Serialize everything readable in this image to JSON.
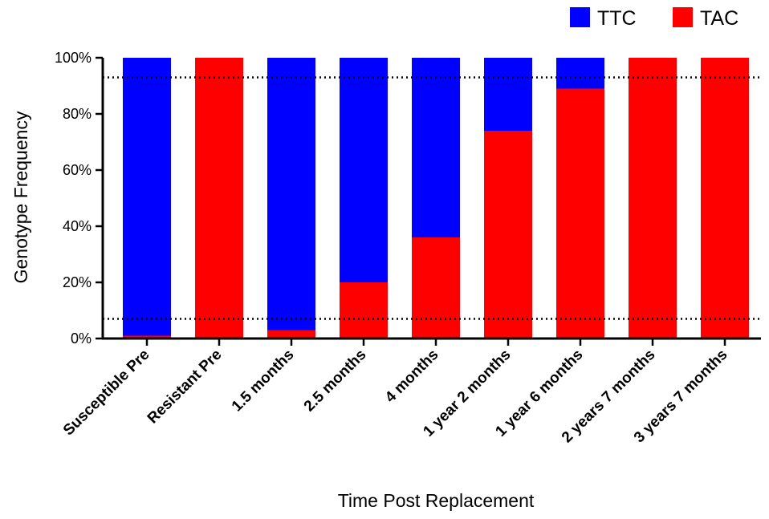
{
  "chart_data": {
    "type": "bar",
    "stacked": true,
    "categories": [
      "Susceptible Pre",
      "Resistant Pre",
      "1.5 months",
      "2.5 months",
      "4 months",
      "1 year 2 months",
      "1 year 6 months",
      "2 years 7 months",
      "3 years 7 months"
    ],
    "series": [
      {
        "name": "TAC",
        "color": "#ff0000",
        "values": [
          1,
          100,
          3,
          20,
          36,
          74,
          89,
          100,
          100
        ]
      },
      {
        "name": "TTC",
        "color": "#0000ff",
        "values": [
          99,
          0,
          97,
          80,
          64,
          26,
          11,
          0,
          0
        ]
      }
    ],
    "xlabel": "Time Post Replacement",
    "ylabel": "Genotype Frequency",
    "ylim": [
      0,
      100
    ],
    "yticks": [
      0,
      20,
      40,
      60,
      80,
      100
    ],
    "ytick_labels": [
      "0%",
      "20%",
      "40%",
      "60%",
      "80%",
      "100%"
    ],
    "reference_lines": [
      93,
      7
    ],
    "legend": {
      "position": "top-right",
      "entries": [
        "TTC",
        "TAC"
      ]
    },
    "grid": false
  }
}
